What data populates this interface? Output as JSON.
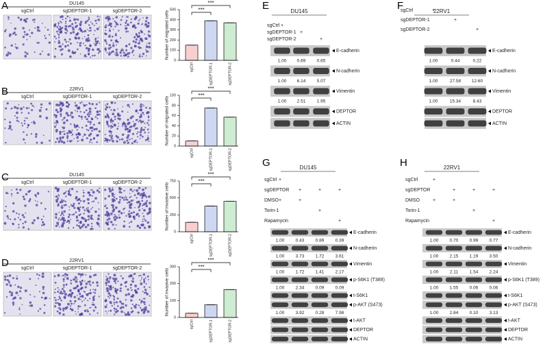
{
  "panels_ad": [
    {
      "label": "A",
      "cell_line": "DU145",
      "groups": [
        "sgCtrl",
        "sgDEPTOR-1",
        "sgDEPTOR-2"
      ],
      "chart": {
        "type": "bar",
        "ylabel": "Number of migrated cells",
        "categories": [
          "sgCtrl",
          "sgDEPTOR-1",
          "sgDEPTOR-2"
        ],
        "values": [
          150,
          390,
          370
        ],
        "colors": [
          "#e8413c",
          "#3a5fcd",
          "#3cb44b"
        ],
        "ylim": [
          0,
          500
        ],
        "yticks": [
          0,
          100,
          200,
          300,
          400,
          500
        ],
        "significance": [
          "***",
          "***"
        ]
      }
    },
    {
      "label": "B",
      "cell_line": "22RV1",
      "groups": [
        "sgCtrl",
        "sgDEPTOR-1",
        "sgDEPTOR-2"
      ],
      "chart": {
        "type": "bar",
        "ylabel": "Number of migrated cells",
        "categories": [
          "sgCtrl",
          "sgDEPTOR-1",
          "sgDEPTOR-2"
        ],
        "values": [
          10,
          75,
          57
        ],
        "colors": [
          "#e8413c",
          "#3a5fcd",
          "#3cb44b"
        ],
        "ylim": [
          0,
          100
        ],
        "yticks": [
          0,
          20,
          40,
          60,
          80,
          100
        ],
        "significance": [
          "***",
          "***"
        ]
      }
    },
    {
      "label": "C",
      "cell_line": "DU145",
      "groups": [
        "sgCtrl",
        "sgDEPTOR-1",
        "sgDEPTOR-2"
      ],
      "chart": {
        "type": "bar",
        "ylabel": "Number of invasive cells",
        "categories": [
          "sgCtrl",
          "sgDEPTOR-1",
          "sgDEPTOR-2"
        ],
        "values": [
          140,
          380,
          450
        ],
        "colors": [
          "#e8413c",
          "#3a5fcd",
          "#3cb44b"
        ],
        "ylim": [
          0,
          750
        ],
        "yticks": [
          0,
          250,
          500,
          750
        ],
        "significance": [
          "***",
          "***"
        ]
      }
    },
    {
      "label": "D",
      "cell_line": "22RV1",
      "groups": [
        "sgCtrl",
        "sgDEPTOR-1",
        "sgDEPTOR-2"
      ],
      "chart": {
        "type": "bar",
        "ylabel": "Number of invasive cells",
        "categories": [
          "sgCtrl",
          "sgDEPTOR-1",
          "sgDEPTOR-2"
        ],
        "values": [
          25,
          75,
          165
        ],
        "colors": [
          "#e8413c",
          "#3a5fcd",
          "#3cb44b"
        ],
        "ylim": [
          0,
          300
        ],
        "yticks": [
          0,
          100,
          200,
          300
        ],
        "significance": [
          "***",
          "***"
        ]
      }
    }
  ],
  "blots": [
    {
      "label": "E",
      "cell_line": "DU145",
      "conditions": [
        {
          "name": "sgCtrl",
          "marks": [
            "+",
            null,
            null
          ]
        },
        {
          "name": "sgDEPTOR-1",
          "marks": [
            null,
            "+",
            null
          ]
        },
        {
          "name": "sgDEPTOR-2",
          "marks": [
            null,
            null,
            "+"
          ]
        }
      ],
      "bands": [
        {
          "name": "E-cadherin",
          "quant": [
            "1.00",
            "0.69",
            "0.65"
          ]
        },
        {
          "name": "N-cadherin",
          "quant": [
            "1.00",
            "6.14",
            "5.07"
          ]
        },
        {
          "name": "Vimentin",
          "quant": [
            "1.00",
            "2.51",
            "1.95"
          ]
        },
        {
          "name": "DEPTOR"
        },
        {
          "name": "ACTIN"
        }
      ]
    },
    {
      "label": "F",
      "cell_line": "22RV1",
      "conditions": [
        {
          "name": "sgCtrl",
          "marks": [
            "+",
            null,
            null
          ]
        },
        {
          "name": "sgDEPTOR-1",
          "marks": [
            null,
            "+",
            null
          ]
        },
        {
          "name": "sgDEPTOR-2",
          "marks": [
            null,
            null,
            "+"
          ]
        }
      ],
      "bands": [
        {
          "name": "E-cadherin",
          "quant": [
            "1.00",
            "0.44",
            "0.22"
          ]
        },
        {
          "name": "N-cadherin",
          "quant": [
            "1.00",
            "27.58",
            "12.60"
          ]
        },
        {
          "name": "Vimentin",
          "quant": [
            "1.00",
            "15.34",
            "8.43"
          ]
        },
        {
          "name": "DEPTOR"
        },
        {
          "name": "ACTIN"
        }
      ]
    },
    {
      "label": "G",
      "cell_line": "DU145",
      "conditions": [
        {
          "name": "sgCtrl",
          "marks": [
            "+",
            null,
            null,
            null
          ]
        },
        {
          "name": "sgDEPTOR",
          "marks": [
            null,
            "+",
            "+",
            "+"
          ]
        },
        {
          "name": "DMSO",
          "marks": [
            "+",
            "+",
            null,
            null
          ]
        },
        {
          "name": "Torin-1",
          "marks": [
            null,
            null,
            "+",
            null
          ]
        },
        {
          "name": "Rapamycin",
          "marks": [
            null,
            null,
            null,
            "+"
          ]
        }
      ],
      "bands": [
        {
          "name": "E-cadherin",
          "quant": [
            "1.00",
            "0.43",
            "0.89",
            "0.39"
          ]
        },
        {
          "name": "N-cadherin",
          "quant": [
            "1.00",
            "3.73",
            "1.72",
            "3.61"
          ]
        },
        {
          "name": "Vimentin",
          "quant": [
            "1.00",
            "1.72",
            "1.41",
            "2.17"
          ]
        },
        {
          "name": "p-S6K1 (T389)",
          "quant": [
            "1.00",
            "2.34",
            "0.09",
            "0.09"
          ]
        },
        {
          "name": "t-S6K1"
        },
        {
          "name": "p-AKT (S473)",
          "quant": [
            "1.00",
            "3.92",
            "0.28",
            "7.98"
          ]
        },
        {
          "name": "t-AKT"
        },
        {
          "name": "DEPTOR"
        },
        {
          "name": "ACTIN"
        }
      ]
    },
    {
      "label": "H",
      "cell_line": "22RV1",
      "conditions": [
        {
          "name": "sgCtrl",
          "marks": [
            "+",
            null,
            null,
            null
          ]
        },
        {
          "name": "sgDEPTOR",
          "marks": [
            null,
            "+",
            "+",
            "+"
          ]
        },
        {
          "name": "DMSO",
          "marks": [
            "+",
            "+",
            null,
            null
          ]
        },
        {
          "name": "Torin-1",
          "marks": [
            null,
            null,
            "+",
            null
          ]
        },
        {
          "name": "Rapamycin",
          "marks": [
            null,
            null,
            null,
            "+"
          ]
        }
      ],
      "bands": [
        {
          "name": "E-cadherin",
          "quant": [
            "1.00",
            "0.70",
            "0.99",
            "0.77"
          ]
        },
        {
          "name": "N-cadherin",
          "quant": [
            "1.00",
            "2.15",
            "1.19",
            "3.50"
          ]
        },
        {
          "name": "Vimentin",
          "quant": [
            "1.00",
            "2.11",
            "1.54",
            "2.24"
          ]
        },
        {
          "name": "p-S6K1 (T389)",
          "quant": [
            "1.00",
            "1.55",
            "0.06",
            "0.06"
          ]
        },
        {
          "name": "t-S6K1"
        },
        {
          "name": "p-AKT (S473)",
          "quant": [
            "1.00",
            "2.84",
            "0.10",
            "3.13"
          ]
        },
        {
          "name": "t-AKT"
        },
        {
          "name": "DEPTOR"
        },
        {
          "name": "ACTIN"
        }
      ]
    }
  ]
}
